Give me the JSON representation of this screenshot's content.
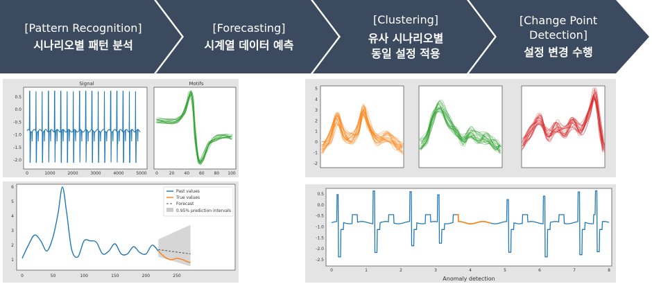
{
  "steps": [
    {
      "en": "[Pattern Recognition]",
      "ko": "시나리오별 패턴 분석"
    },
    {
      "en": "[Forecasting]",
      "ko": "시계열 데이터 예측"
    },
    {
      "en": "[Clustering]",
      "ko": "유사 시나리오별",
      "ko2": "동일 설정 적용"
    },
    {
      "en": "[Change Point",
      "en2": "Detection]",
      "ko": "설정 변경 수행"
    }
  ],
  "colors": {
    "banner": "#3b4a5e",
    "blue": "#1f77b4",
    "orange": "#ff7f0e",
    "green": "#2ca02c",
    "red": "#d62728"
  },
  "chart_data": [
    {
      "type": "line",
      "title": "Signal",
      "x_ticks": [
        "0",
        "1000",
        "2000",
        "3000",
        "4000",
        "5000"
      ],
      "y_ticks": [
        "0.5",
        "0.0",
        "-0.5",
        "-1.0",
        "-1.5",
        "-2.0"
      ],
      "xlim": [
        0,
        5000
      ],
      "ylim": [
        -2.3,
        0.8
      ]
    },
    {
      "type": "line",
      "title": "Motifs",
      "x_ticks": [
        "0",
        "20",
        "40",
        "60",
        "80",
        "100"
      ],
      "xlim": [
        0,
        100
      ]
    },
    {
      "type": "line",
      "legend": [
        "Past values",
        "True values",
        "Forecast",
        "0.95% prediction intervals"
      ],
      "x_ticks": [
        "0",
        "50",
        "100",
        "150",
        "200",
        "250"
      ],
      "y_ticks": [
        "1",
        "2",
        "3",
        "4",
        "5",
        "6"
      ],
      "xlim": [
        0,
        280
      ],
      "ylim": [
        0.5,
        6.3
      ],
      "past": {
        "x": [
          0,
          10,
          20,
          30,
          40,
          50,
          58,
          65,
          72,
          80,
          90,
          100,
          110,
          120,
          130,
          140,
          150,
          160,
          170,
          180,
          190,
          200,
          210,
          220
        ],
        "y": [
          1.1,
          2.0,
          2.7,
          2.3,
          1.6,
          2.6,
          4.2,
          6.0,
          4.2,
          1.7,
          1.2,
          2.3,
          2.3,
          2.2,
          1.4,
          1.6,
          2.1,
          1.4,
          1.4,
          1.9,
          1.5,
          1.4,
          2.0,
          1.6
        ]
      },
      "true": {
        "x": [
          220,
          230,
          240,
          250,
          260,
          265,
          272
        ],
        "y": [
          1.6,
          1.2,
          1.0,
          1.1,
          1.0,
          0.9,
          0.8
        ]
      },
      "forecast": {
        "x": [
          220,
          272
        ],
        "y": [
          1.7,
          1.4
        ]
      }
    },
    {
      "type": "line",
      "series_colors": [
        "orange",
        "green",
        "red"
      ],
      "y_ticks": [
        "5",
        "4",
        "3",
        "2",
        "1",
        "0",
        "-1",
        "-2"
      ],
      "ylim": [
        -2.3,
        5.3
      ]
    },
    {
      "type": "line",
      "xlabel": "Anomaly detection",
      "x_ticks": [
        "0",
        "1",
        "2",
        "3",
        "4",
        "5",
        "6",
        "7",
        "8"
      ],
      "y_ticks": [
        "0.5",
        "0.0",
        "-0.5",
        "-1.0",
        "-1.5",
        "-2.0",
        "-2.5"
      ],
      "xlim": [
        0,
        8
      ],
      "ylim": [
        -2.7,
        0.7
      ],
      "anomaly_range": [
        3.6,
        4.6
      ]
    }
  ]
}
